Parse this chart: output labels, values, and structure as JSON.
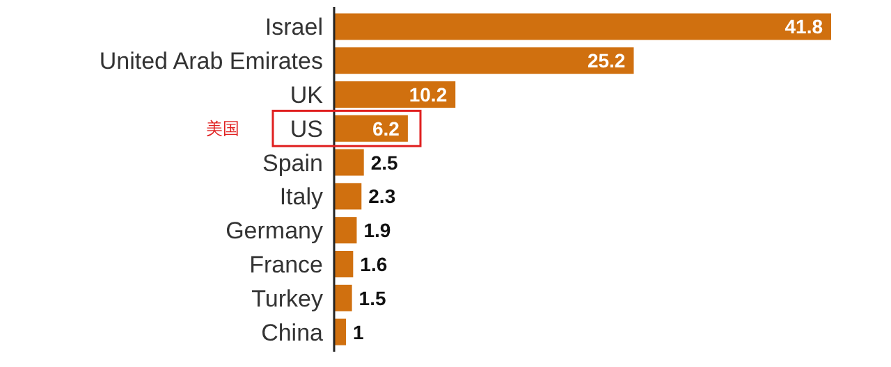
{
  "chart_data": {
    "type": "bar",
    "orientation": "horizontal",
    "categories": [
      "Israel",
      "United Arab Emirates",
      "UK",
      "US",
      "Spain",
      "Italy",
      "Germany",
      "France",
      "Turkey",
      "China"
    ],
    "values": [
      41.8,
      25.2,
      10.2,
      6.2,
      2.5,
      2.3,
      1.9,
      1.6,
      1.5,
      1
    ],
    "color": "#d0700f",
    "data_labels": true,
    "annotations": [
      "美国"
    ]
  }
}
